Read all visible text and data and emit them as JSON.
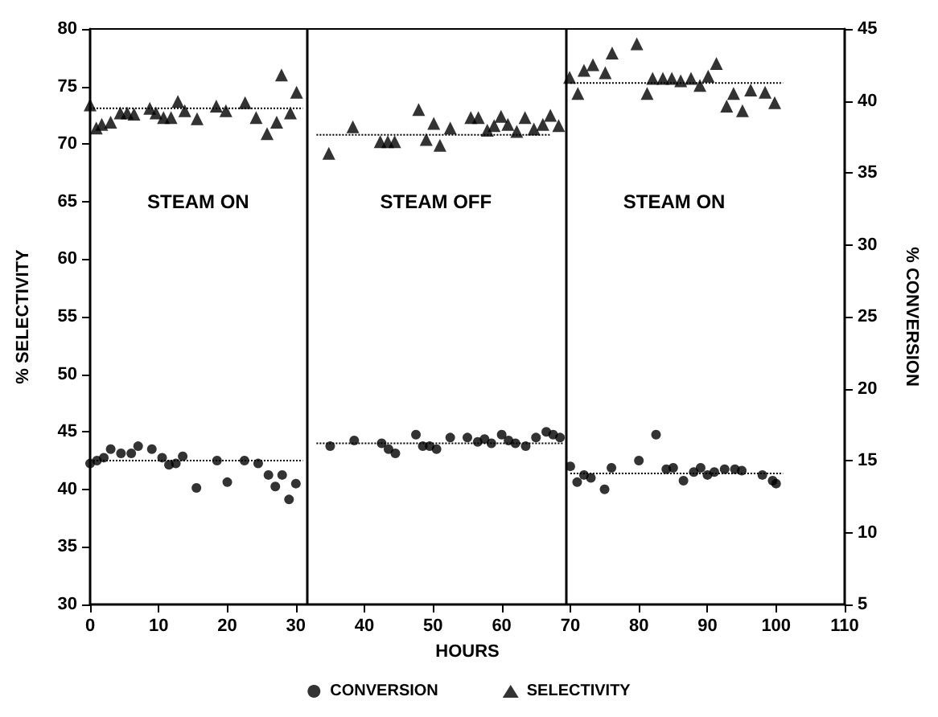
{
  "chart_data": {
    "type": "scatter",
    "xlabel": "HOURS",
    "ylabel": "% SELECTIVITY",
    "y2label": "% CONVERSION",
    "xlim": [
      0,
      110
    ],
    "xticks": [
      0,
      10,
      20,
      30,
      40,
      50,
      60,
      70,
      80,
      90,
      100,
      110
    ],
    "ylim": [
      30,
      80
    ],
    "yticks": [
      30,
      35,
      40,
      45,
      50,
      55,
      60,
      65,
      70,
      75,
      80
    ],
    "y2lim": [
      5,
      45
    ],
    "y2ticks": [
      5,
      10,
      15,
      20,
      25,
      30,
      35,
      40,
      45
    ],
    "grid": false,
    "legend": "bottom",
    "series": [
      {
        "name": "CONVERSION",
        "color": "#000000",
        "marker": "circle",
        "axis": "y2",
        "x": [
          0,
          1,
          2,
          3,
          4.5,
          6,
          7,
          9,
          10.5,
          11.5,
          12.5,
          13.5,
          15.5,
          18.5,
          20,
          22.5,
          24.5,
          26,
          27,
          28,
          29,
          30,
          35,
          38.5,
          42.5,
          43.5,
          44.5,
          47.5,
          48.5,
          49.5,
          50.5,
          52.5,
          55,
          56.5,
          57.5,
          58.5,
          60,
          61,
          62,
          63.5,
          65,
          66.5,
          67.5,
          68.5,
          70,
          71,
          72,
          73,
          75,
          76,
          80,
          82.5,
          84,
          85,
          86.5,
          88,
          89,
          90,
          91,
          92.5,
          94,
          95,
          98,
          99.5,
          100
        ],
        "values": [
          14.8,
          15.0,
          15.2,
          15.8,
          15.5,
          15.5,
          16.0,
          15.8,
          15.2,
          14.7,
          14.8,
          15.3,
          13.1,
          15.0,
          13.5,
          15.0,
          14.8,
          14.0,
          13.2,
          14.0,
          12.3,
          13.4,
          16.0,
          16.4,
          16.2,
          15.8,
          15.5,
          16.8,
          16.0,
          16.0,
          15.8,
          16.6,
          16.6,
          16.3,
          16.5,
          16.2,
          16.8,
          16.4,
          16.2,
          16.0,
          16.6,
          17.0,
          16.8,
          16.6,
          14.6,
          13.5,
          14.0,
          13.8,
          13.0,
          14.5,
          15.0,
          16.8,
          14.4,
          14.5,
          13.6,
          14.2,
          14.5,
          14.0,
          14.2,
          14.4,
          14.4,
          14.3,
          14.0,
          13.6,
          13.4
        ]
      },
      {
        "name": "SELECTIVITY",
        "color": "#000000",
        "marker": "triangle",
        "x": [
          0,
          0.9,
          1.7,
          3.0,
          4.4,
          5.4,
          6.4,
          8.7,
          9.6,
          10.7,
          11.8,
          12.8,
          13.8,
          15.6,
          18.4,
          19.8,
          22.6,
          24.2,
          25.8,
          27.2,
          27.9,
          29.2,
          30.1,
          34.8,
          38.3,
          42.3,
          43.4,
          44.4,
          47.9,
          49.0,
          50.1,
          51.0,
          52.5,
          55.5,
          56.6,
          57.9,
          58.9,
          59.9,
          60.9,
          62.2,
          63.4,
          64.7,
          66.0,
          67.1,
          68.3,
          69.9,
          71.1,
          72.0,
          73.3,
          75.1,
          76.1,
          79.7,
          81.2,
          82.0,
          83.5,
          84.8,
          86.1,
          87.6,
          88.9,
          90.1,
          91.3,
          92.8,
          93.8,
          95.1,
          96.3,
          98.4,
          99.8
        ],
        "values": [
          73.4,
          71.4,
          71.7,
          71.9,
          72.7,
          72.7,
          72.6,
          73.1,
          72.7,
          72.3,
          72.3,
          73.7,
          72.9,
          72.2,
          73.3,
          72.9,
          73.6,
          72.3,
          70.9,
          71.9,
          76.0,
          72.7,
          74.5,
          69.2,
          71.5,
          70.2,
          70.2,
          70.2,
          73.0,
          70.4,
          71.8,
          69.9,
          71.4,
          72.3,
          72.3,
          71.2,
          71.6,
          72.4,
          71.7,
          71.1,
          72.3,
          71.3,
          71.7,
          72.5,
          71.6,
          75.8,
          74.4,
          76.4,
          76.9,
          76.2,
          77.9,
          78.7,
          74.4,
          75.7,
          75.7,
          75.7,
          75.5,
          75.7,
          75.1,
          75.9,
          77.0,
          73.3,
          74.4,
          72.9,
          74.7,
          74.5,
          73.6
        ]
      },
      {
        "type": "line",
        "color": "#000000",
        "marker": "none",
        "line_style": "dotted",
        "x": [
          0,
          31
        ],
        "values": [
          73.1,
          73.1
        ]
      },
      {
        "type": "line",
        "color": "#000000",
        "marker": "none",
        "line_style": "dotted",
        "x": [
          33,
          67
        ],
        "values": [
          70.8,
          70.8
        ]
      },
      {
        "type": "line",
        "color": "#000000",
        "marker": "none",
        "line_style": "dotted",
        "x": [
          70,
          101
        ],
        "values": [
          75.3,
          75.3
        ]
      },
      {
        "type": "line",
        "color": "#000000",
        "marker": "none",
        "line_style": "dotted",
        "axis": "y2",
        "x": [
          0,
          31
        ],
        "values": [
          15.0,
          15.0
        ]
      },
      {
        "type": "line",
        "color": "#000000",
        "marker": "none",
        "line_style": "dotted",
        "axis": "y2",
        "x": [
          33,
          69
        ],
        "values": [
          16.2,
          16.2
        ]
      },
      {
        "type": "line",
        "color": "#000000",
        "marker": "none",
        "line_style": "dotted",
        "axis": "y2",
        "x": [
          70,
          101
        ],
        "values": [
          14.1,
          14.1
        ]
      }
    ],
    "ref_lines": [
      {
        "axis": "x",
        "value": 31.5,
        "color": "#000000",
        "line_style": "solid"
      },
      {
        "axis": "x",
        "value": 69.3,
        "color": "#000000",
        "line_style": "solid"
      }
    ],
    "annotations": [
      "STEAM ON",
      "STEAM OFF",
      "STEAM ON"
    ]
  }
}
